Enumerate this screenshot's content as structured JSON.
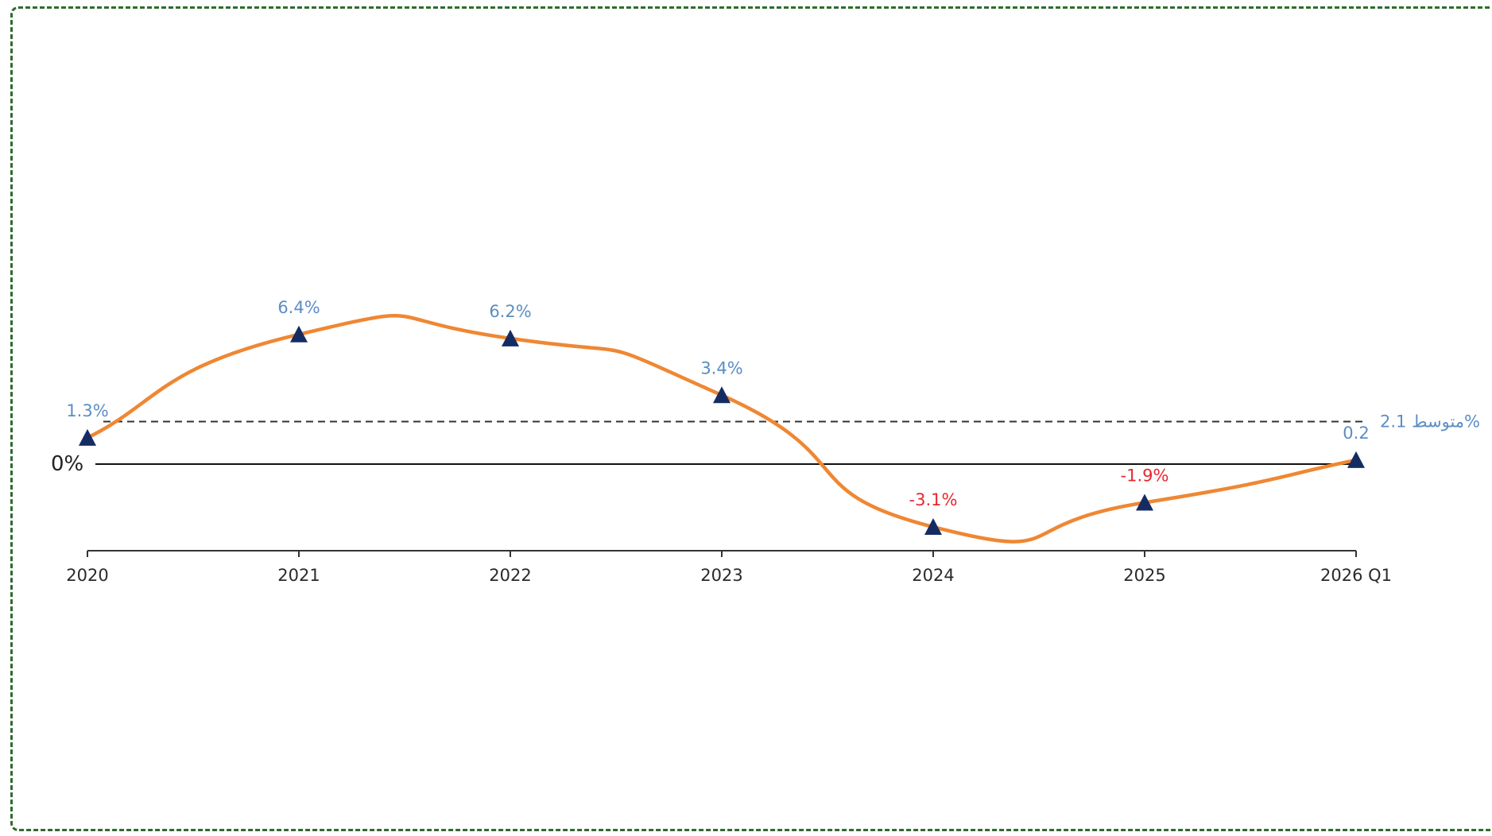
{
  "chart_data": {
    "type": "line",
    "categories": [
      "2020",
      "2021",
      "2022",
      "2023",
      "2024",
      "2025",
      "2026 Q1"
    ],
    "series": [
      {
        "values": [
          1.3,
          6.4,
          6.2,
          3.4,
          -3.1,
          -1.9,
          0.2
        ],
        "labels": [
          "1.3%",
          "6.4%",
          "6.2%",
          "3.4%",
          "-3.1%",
          "-1.9%",
          "0.2"
        ],
        "color": "#ef8733",
        "marker": "triangle",
        "marker_color": "#152c63"
      }
    ],
    "reference_lines": [
      {
        "value": 2.1,
        "label": "متوسط 2.1%",
        "style": "dashed",
        "color": "#333333",
        "label_color": "#5b8ec4"
      },
      {
        "value": 0,
        "label": "0%",
        "style": "solid",
        "color": "#111111"
      }
    ],
    "positive_label_color": "#5b8ec4",
    "negative_label_color": "#e8272e",
    "ylim": [
      -3.5,
      7.5
    ],
    "grid": false,
    "legend": "none"
  }
}
